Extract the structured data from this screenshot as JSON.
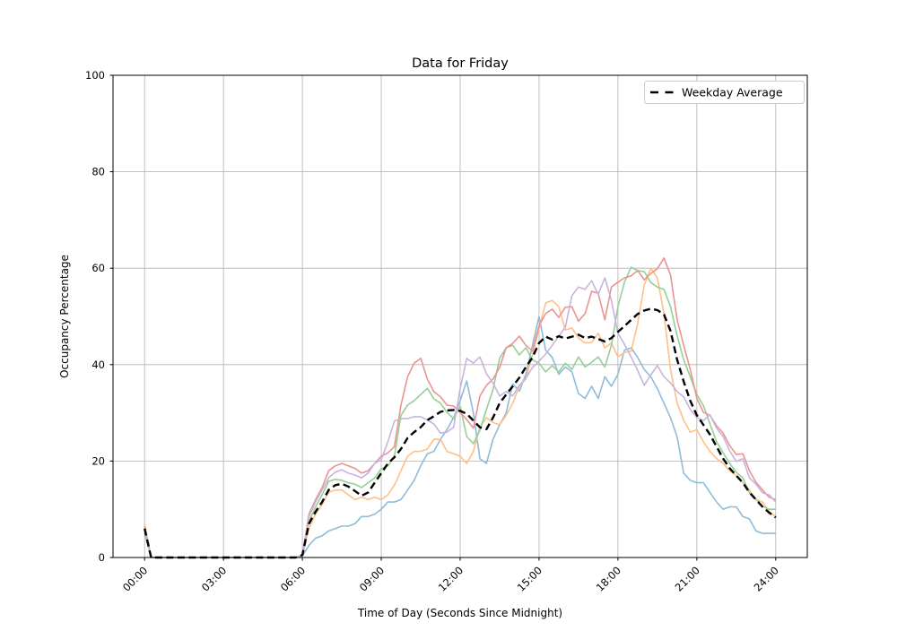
{
  "figure": {
    "background": "#ffffff",
    "grid_color": "#b0b0b0",
    "spine_color": "#000000"
  },
  "chart_data": {
    "type": "line",
    "title": "Data for Friday",
    "xlabel": "Time of Day (Seconds Since Midnight)",
    "ylabel": "Occupancy Percentage",
    "grid": true,
    "legend": {
      "label": "Weekday Average",
      "position": "upper right"
    },
    "ylim": [
      0,
      100
    ],
    "y_ticks": [
      0,
      20,
      40,
      60,
      80,
      100
    ],
    "xlim_seconds": [
      -4320,
      90720
    ],
    "x_ticks": [
      {
        "seconds": 0,
        "label": "00:00"
      },
      {
        "seconds": 10800,
        "label": "03:00"
      },
      {
        "seconds": 21600,
        "label": "06:00"
      },
      {
        "seconds": 32400,
        "label": "09:00"
      },
      {
        "seconds": 43200,
        "label": "12:00"
      },
      {
        "seconds": 54000,
        "label": "15:00"
      },
      {
        "seconds": 64800,
        "label": "18:00"
      },
      {
        "seconds": 75600,
        "label": "21:00"
      },
      {
        "seconds": 86400,
        "label": "24:00"
      }
    ],
    "start_seconds": 0,
    "interval_seconds": 900,
    "series": [
      {
        "name": "series-blue",
        "color": "#8fbbd9",
        "dashed": false,
        "line_width": 1.6,
        "values": [
          5,
          0,
          0,
          0,
          0,
          0,
          0,
          0,
          0,
          0,
          0,
          0,
          0,
          0,
          0,
          0,
          0,
          0,
          0,
          0,
          0,
          0,
          0,
          0,
          0.3,
          2.5,
          4,
          4.5,
          5.5,
          6,
          6.5,
          6.5,
          7,
          8.5,
          8.5,
          9,
          10,
          11.5,
          11.5,
          12,
          14,
          16,
          19,
          21.5,
          22,
          24.5,
          26.5,
          29,
          32.5,
          36.6,
          30,
          20.5,
          19.5,
          24.5,
          27.5,
          30,
          36,
          34.5,
          38,
          44,
          50,
          43,
          41.5,
          38,
          39.5,
          38.5,
          34,
          33,
          35.5,
          33,
          37.5,
          35.5,
          38,
          43,
          43.5,
          41.5,
          39,
          37.5,
          35,
          32,
          29,
          25,
          17.5,
          16,
          15.5,
          15.5,
          13.5,
          11.5,
          10,
          10.5,
          10.5,
          8.5,
          8,
          5.5,
          5,
          5,
          5
        ]
      },
      {
        "name": "series-orange",
        "color": "#ffbf86",
        "dashed": false,
        "line_width": 1.6,
        "values": [
          7,
          0,
          0,
          0,
          0,
          0,
          0,
          0,
          0,
          0,
          0,
          0,
          0,
          0,
          0,
          0,
          0,
          0,
          0,
          0,
          0,
          0,
          0,
          0,
          0.5,
          6,
          9,
          11,
          13.5,
          14,
          14,
          13,
          12,
          12.5,
          12,
          12.5,
          12,
          13,
          15,
          18,
          21,
          22,
          22,
          22.5,
          24.5,
          24.5,
          22,
          21.5,
          21,
          19.5,
          22,
          27,
          29,
          28,
          27.5,
          29.5,
          32,
          35.5,
          37,
          42,
          47.5,
          52.8,
          53.3,
          52,
          47.2,
          47.6,
          45.5,
          44.5,
          44.6,
          46.5,
          43.5,
          44.5,
          41.6,
          42.5,
          42.8,
          48.5,
          56.5,
          60,
          58,
          50.5,
          39,
          32,
          28.5,
          26,
          26.5,
          24,
          22,
          20.5,
          19.5,
          18,
          17,
          15.5,
          14,
          12,
          11.5,
          9.5,
          8.5
        ]
      },
      {
        "name": "series-green",
        "color": "#95cf95",
        "dashed": false,
        "line_width": 1.6,
        "values": [
          5.5,
          0,
          0,
          0,
          0,
          0,
          0,
          0,
          0,
          0,
          0,
          0,
          0,
          0,
          0,
          0,
          0,
          0,
          0,
          0,
          0,
          0,
          0,
          0,
          0.5,
          7.5,
          10.5,
          13,
          15.8,
          16.2,
          16,
          15.5,
          15.2,
          14.5,
          15.5,
          16.5,
          18.4,
          19,
          21,
          29.5,
          31.6,
          32.5,
          33.8,
          35.1,
          32.9,
          32,
          30.1,
          28.8,
          31.4,
          25.1,
          23.6,
          26.4,
          30.7,
          34.8,
          41.3,
          43.5,
          44,
          42,
          43.5,
          41,
          40.3,
          38.5,
          39.8,
          38.5,
          40.3,
          39,
          41.6,
          39.5,
          40.5,
          41.6,
          39.5,
          44,
          52,
          57.1,
          60.2,
          59.5,
          59.3,
          57,
          56.1,
          55.6,
          52,
          46,
          41,
          37.5,
          33.8,
          31.5,
          27.7,
          24,
          21.7,
          19.5,
          17.7,
          16.5,
          13.4,
          12.1,
          10.6,
          10,
          10
        ]
      },
      {
        "name": "series-red",
        "color": "#ea9393",
        "dashed": false,
        "line_width": 1.6,
        "values": [
          6.5,
          0,
          0,
          0,
          0,
          0,
          0,
          0,
          0,
          0,
          0,
          0,
          0,
          0,
          0,
          0,
          0,
          0,
          0,
          0,
          0,
          0,
          0,
          0,
          0.5,
          9,
          12,
          14.5,
          18,
          19,
          19.5,
          19,
          18.5,
          17.5,
          18,
          19.5,
          21,
          21.7,
          23,
          31.6,
          37.5,
          40.3,
          41.3,
          37,
          34.4,
          33.3,
          31.6,
          31.4,
          30.1,
          28.6,
          26.8,
          33.5,
          35.7,
          37,
          39.4,
          43.5,
          44.4,
          45.9,
          44,
          42.8,
          48.1,
          50.6,
          51.5,
          49.8,
          51.9,
          52,
          49,
          50.6,
          55.2,
          54.8,
          49.3,
          56.1,
          57.1,
          58,
          58.4,
          59.5,
          57.6,
          58.9,
          59.9,
          62.1,
          58.6,
          49.3,
          44,
          39,
          33,
          30.1,
          29.5,
          27.3,
          25.8,
          23.2,
          21.4,
          21.5,
          18,
          15.6,
          14,
          12.5,
          12
        ]
      },
      {
        "name": "series-purple",
        "color": "#c9b3de",
        "dashed": false,
        "line_width": 1.6,
        "values": [
          6,
          0,
          0,
          0,
          0,
          0,
          0,
          0,
          0,
          0,
          0,
          0,
          0,
          0,
          0,
          0,
          0,
          0,
          0,
          0,
          0,
          0,
          0,
          0,
          0.5,
          8.5,
          11.5,
          14,
          16.5,
          17.7,
          18.2,
          17.5,
          17.1,
          16.5,
          17.5,
          19.5,
          20.3,
          24,
          28.3,
          28.8,
          28.8,
          29.2,
          29.2,
          28.5,
          27.7,
          25.8,
          26,
          27,
          35,
          41.3,
          40.3,
          41.6,
          38.1,
          36.2,
          33.5,
          34.4,
          33.5,
          35.7,
          37.2,
          39.4,
          40.7,
          42.2,
          44,
          45.9,
          47.8,
          54.3,
          56.1,
          55.6,
          57.4,
          54.6,
          58,
          53.3,
          46.5,
          44.2,
          41.6,
          38.8,
          35.7,
          37.9,
          39.8,
          37.5,
          36.2,
          34.4,
          33.3,
          30.7,
          29,
          28.4,
          29.6,
          26.8,
          25.1,
          22.1,
          19.9,
          20.5,
          16.5,
          15.2,
          13.4,
          13,
          11.5
        ]
      },
      {
        "name": "Weekday Average",
        "color": "#000000",
        "dashed": true,
        "line_width": 2.4,
        "values": [
          6,
          0,
          0,
          0,
          0,
          0,
          0,
          0,
          0,
          0,
          0,
          0,
          0,
          0,
          0,
          0,
          0,
          0,
          0,
          0,
          0,
          0,
          0,
          0,
          0.5,
          7,
          9.5,
          11.5,
          14,
          15,
          15.3,
          14.7,
          13.8,
          12.8,
          13.5,
          15.5,
          17.5,
          19.5,
          20.8,
          22.5,
          24.8,
          26,
          27,
          28.5,
          29.3,
          30.2,
          30.5,
          30.6,
          30.4,
          29.8,
          28.4,
          27,
          26.6,
          29,
          32,
          33.8,
          35.5,
          37.3,
          39.5,
          41.5,
          44.5,
          45.8,
          45.2,
          45.9,
          45.4,
          45.8,
          46.2,
          45.5,
          45.8,
          45.3,
          44.8,
          45.5,
          46.8,
          48,
          49.3,
          50.5,
          51.2,
          51.6,
          51.3,
          50.4,
          47,
          41,
          36.5,
          32.5,
          29.5,
          27.5,
          25.5,
          23,
          20.5,
          18.5,
          17,
          15.5,
          13.5,
          12,
          10.5,
          9.3,
          8.3
        ]
      }
    ]
  }
}
